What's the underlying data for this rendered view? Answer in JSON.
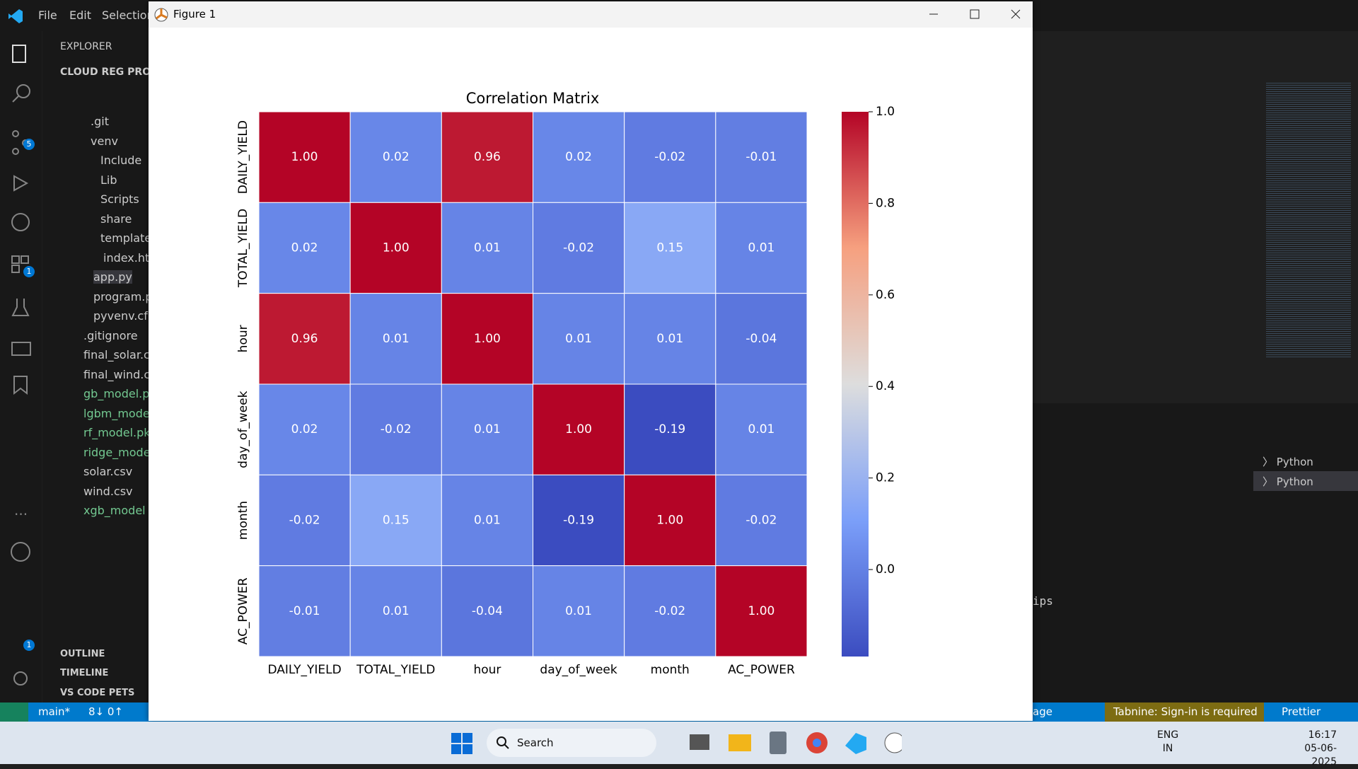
{
  "window": {
    "title": "Figure 1"
  },
  "vscode": {
    "menu": [
      "File",
      "Edit",
      "Selection"
    ],
    "explorer": "EXPLORER",
    "project": "CLOUD REG PROJEC",
    "tree": [
      ".git",
      "venv",
      "Include",
      "Lib",
      "Scripts",
      "share",
      "templates",
      "index.ht",
      "app.py",
      "program.p",
      "pyvenv.cf",
      ".gitignore",
      "final_solar.c",
      "final_wind.c",
      "gb_model.p",
      "lgbm_mode",
      "rf_model.pk",
      "ridge_mode",
      "solar.csv",
      "wind.csv",
      "xgb_model"
    ],
    "badges": [
      "5",
      "1",
      "1"
    ],
    "sections": [
      "OUTLINE",
      "TIMELINE",
      "VS CODE PETS"
    ],
    "status": {
      "branch": "main*",
      "sync": "8↓ 0↑",
      "right": [
        "age",
        "Tabnine: Sign-in is required",
        "Prettier"
      ]
    },
    "terminal_tabs": [
      "Python",
      "Python"
    ],
    "terminal_text": "ips"
  },
  "taskbar": {
    "search": "Search",
    "lang": [
      "ENG",
      "IN"
    ],
    "time": "16:17",
    "date": "05-06-2025"
  },
  "chart_data": {
    "type": "heatmap",
    "title": "Correlation Matrix",
    "colormap": "coolwarm",
    "categories": [
      "DAILY_YIELD",
      "TOTAL_YIELD",
      "hour",
      "day_of_week",
      "month",
      "AC_POWER"
    ],
    "rows": [
      "DAILY_YIELD",
      "TOTAL_YIELD",
      "hour",
      "day_of_week",
      "month",
      "AC_POWER"
    ],
    "values": [
      [
        1.0,
        0.02,
        0.96,
        0.02,
        -0.02,
        -0.01
      ],
      [
        0.02,
        1.0,
        0.01,
        -0.02,
        0.15,
        0.01
      ],
      [
        0.96,
        0.01,
        1.0,
        0.01,
        0.01,
        -0.04
      ],
      [
        0.02,
        -0.02,
        0.01,
        1.0,
        -0.19,
        0.01
      ],
      [
        -0.02,
        0.15,
        0.01,
        -0.19,
        1.0,
        -0.02
      ],
      [
        -0.01,
        0.01,
        -0.04,
        0.01,
        -0.02,
        1.0
      ]
    ],
    "value_labels": [
      [
        "1.00",
        "0.02",
        "0.96",
        "0.02",
        "-0.02",
        "-0.01"
      ],
      [
        "0.02",
        "1.00",
        "0.01",
        "-0.02",
        "0.15",
        "0.01"
      ],
      [
        "0.96",
        "0.01",
        "1.00",
        "0.01",
        "0.01",
        "-0.04"
      ],
      [
        "0.02",
        "-0.02",
        "0.01",
        "1.00",
        "-0.19",
        "0.01"
      ],
      [
        "-0.02",
        "0.15",
        "0.01",
        "-0.19",
        "1.00",
        "-0.02"
      ],
      [
        "-0.01",
        "0.01",
        "-0.04",
        "0.01",
        "-0.02",
        "1.00"
      ]
    ],
    "clim": [
      -0.19,
      1.0
    ],
    "cticks": [
      {
        "value": 0,
        "label": "0.0"
      },
      {
        "value": 0.2,
        "label": "0.2"
      },
      {
        "value": 0.4,
        "label": "0.4"
      },
      {
        "value": 0.6,
        "label": "0.6"
      },
      {
        "value": 0.8,
        "label": "0.8"
      },
      {
        "value": 1,
        "label": "1.0"
      }
    ]
  }
}
